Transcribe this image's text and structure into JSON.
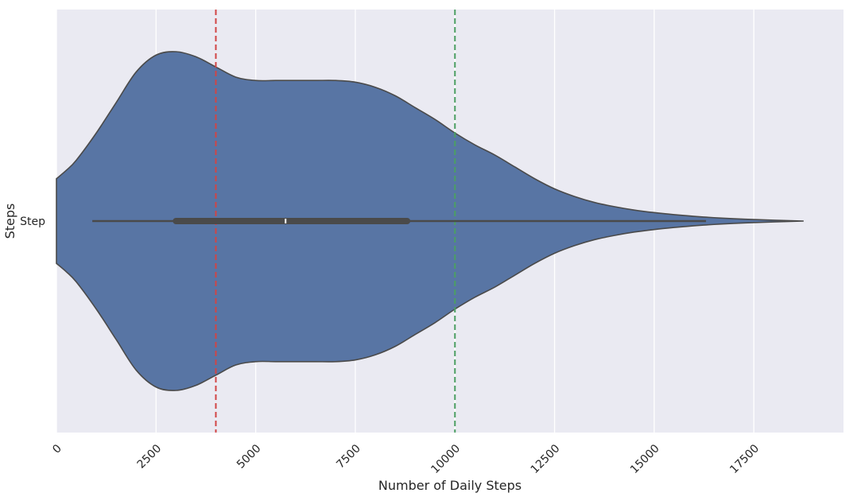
{
  "chart_data": {
    "type": "violin",
    "title": "",
    "xlabel": "Number of Daily Steps",
    "ylabel": "Steps",
    "category": "Step",
    "xlim": [
      0,
      19750
    ],
    "xticks": [
      0,
      2500,
      5000,
      7500,
      10000,
      12500,
      15000,
      17500
    ],
    "xtick_labels": [
      "0",
      "2500",
      "5000",
      "7500",
      "10000",
      "12500",
      "15000",
      "17500"
    ],
    "grid": true,
    "background_color": "#EAEAF2",
    "grid_color": "#FFFFFF",
    "violin_color": "#5875A4",
    "edge_color": "#4A4A4A",
    "box_color": "#4A4A4A",
    "density": {
      "steps": [
        0,
        250,
        500,
        1000,
        1500,
        2000,
        2500,
        3000,
        3500,
        4000,
        4500,
        5000,
        5500,
        6000,
        6500,
        7000,
        7500,
        8000,
        8500,
        9000,
        9500,
        10000,
        10500,
        11000,
        11500,
        12000,
        12500,
        13000,
        13500,
        14000,
        14500,
        15000,
        15500,
        16000,
        16500,
        17000,
        17500,
        18000,
        18500,
        18750
      ],
      "half_width": [
        0.25,
        0.3,
        0.36,
        0.52,
        0.7,
        0.88,
        0.98,
        1.0,
        0.97,
        0.91,
        0.85,
        0.83,
        0.83,
        0.83,
        0.83,
        0.83,
        0.82,
        0.79,
        0.74,
        0.67,
        0.6,
        0.52,
        0.45,
        0.39,
        0.32,
        0.25,
        0.19,
        0.145,
        0.11,
        0.085,
        0.065,
        0.05,
        0.038,
        0.028,
        0.02,
        0.014,
        0.009,
        0.005,
        0.0015,
        0
      ]
    },
    "box": {
      "whisker_low": 900,
      "q1": 3000,
      "median": 5750,
      "q3": 8800,
      "whisker_high": 16300
    },
    "reference_lines": [
      {
        "value": 4000,
        "color": "#D14545",
        "style": "dashed"
      },
      {
        "value": 10000,
        "color": "#4C9F63",
        "style": "dashed"
      }
    ]
  }
}
